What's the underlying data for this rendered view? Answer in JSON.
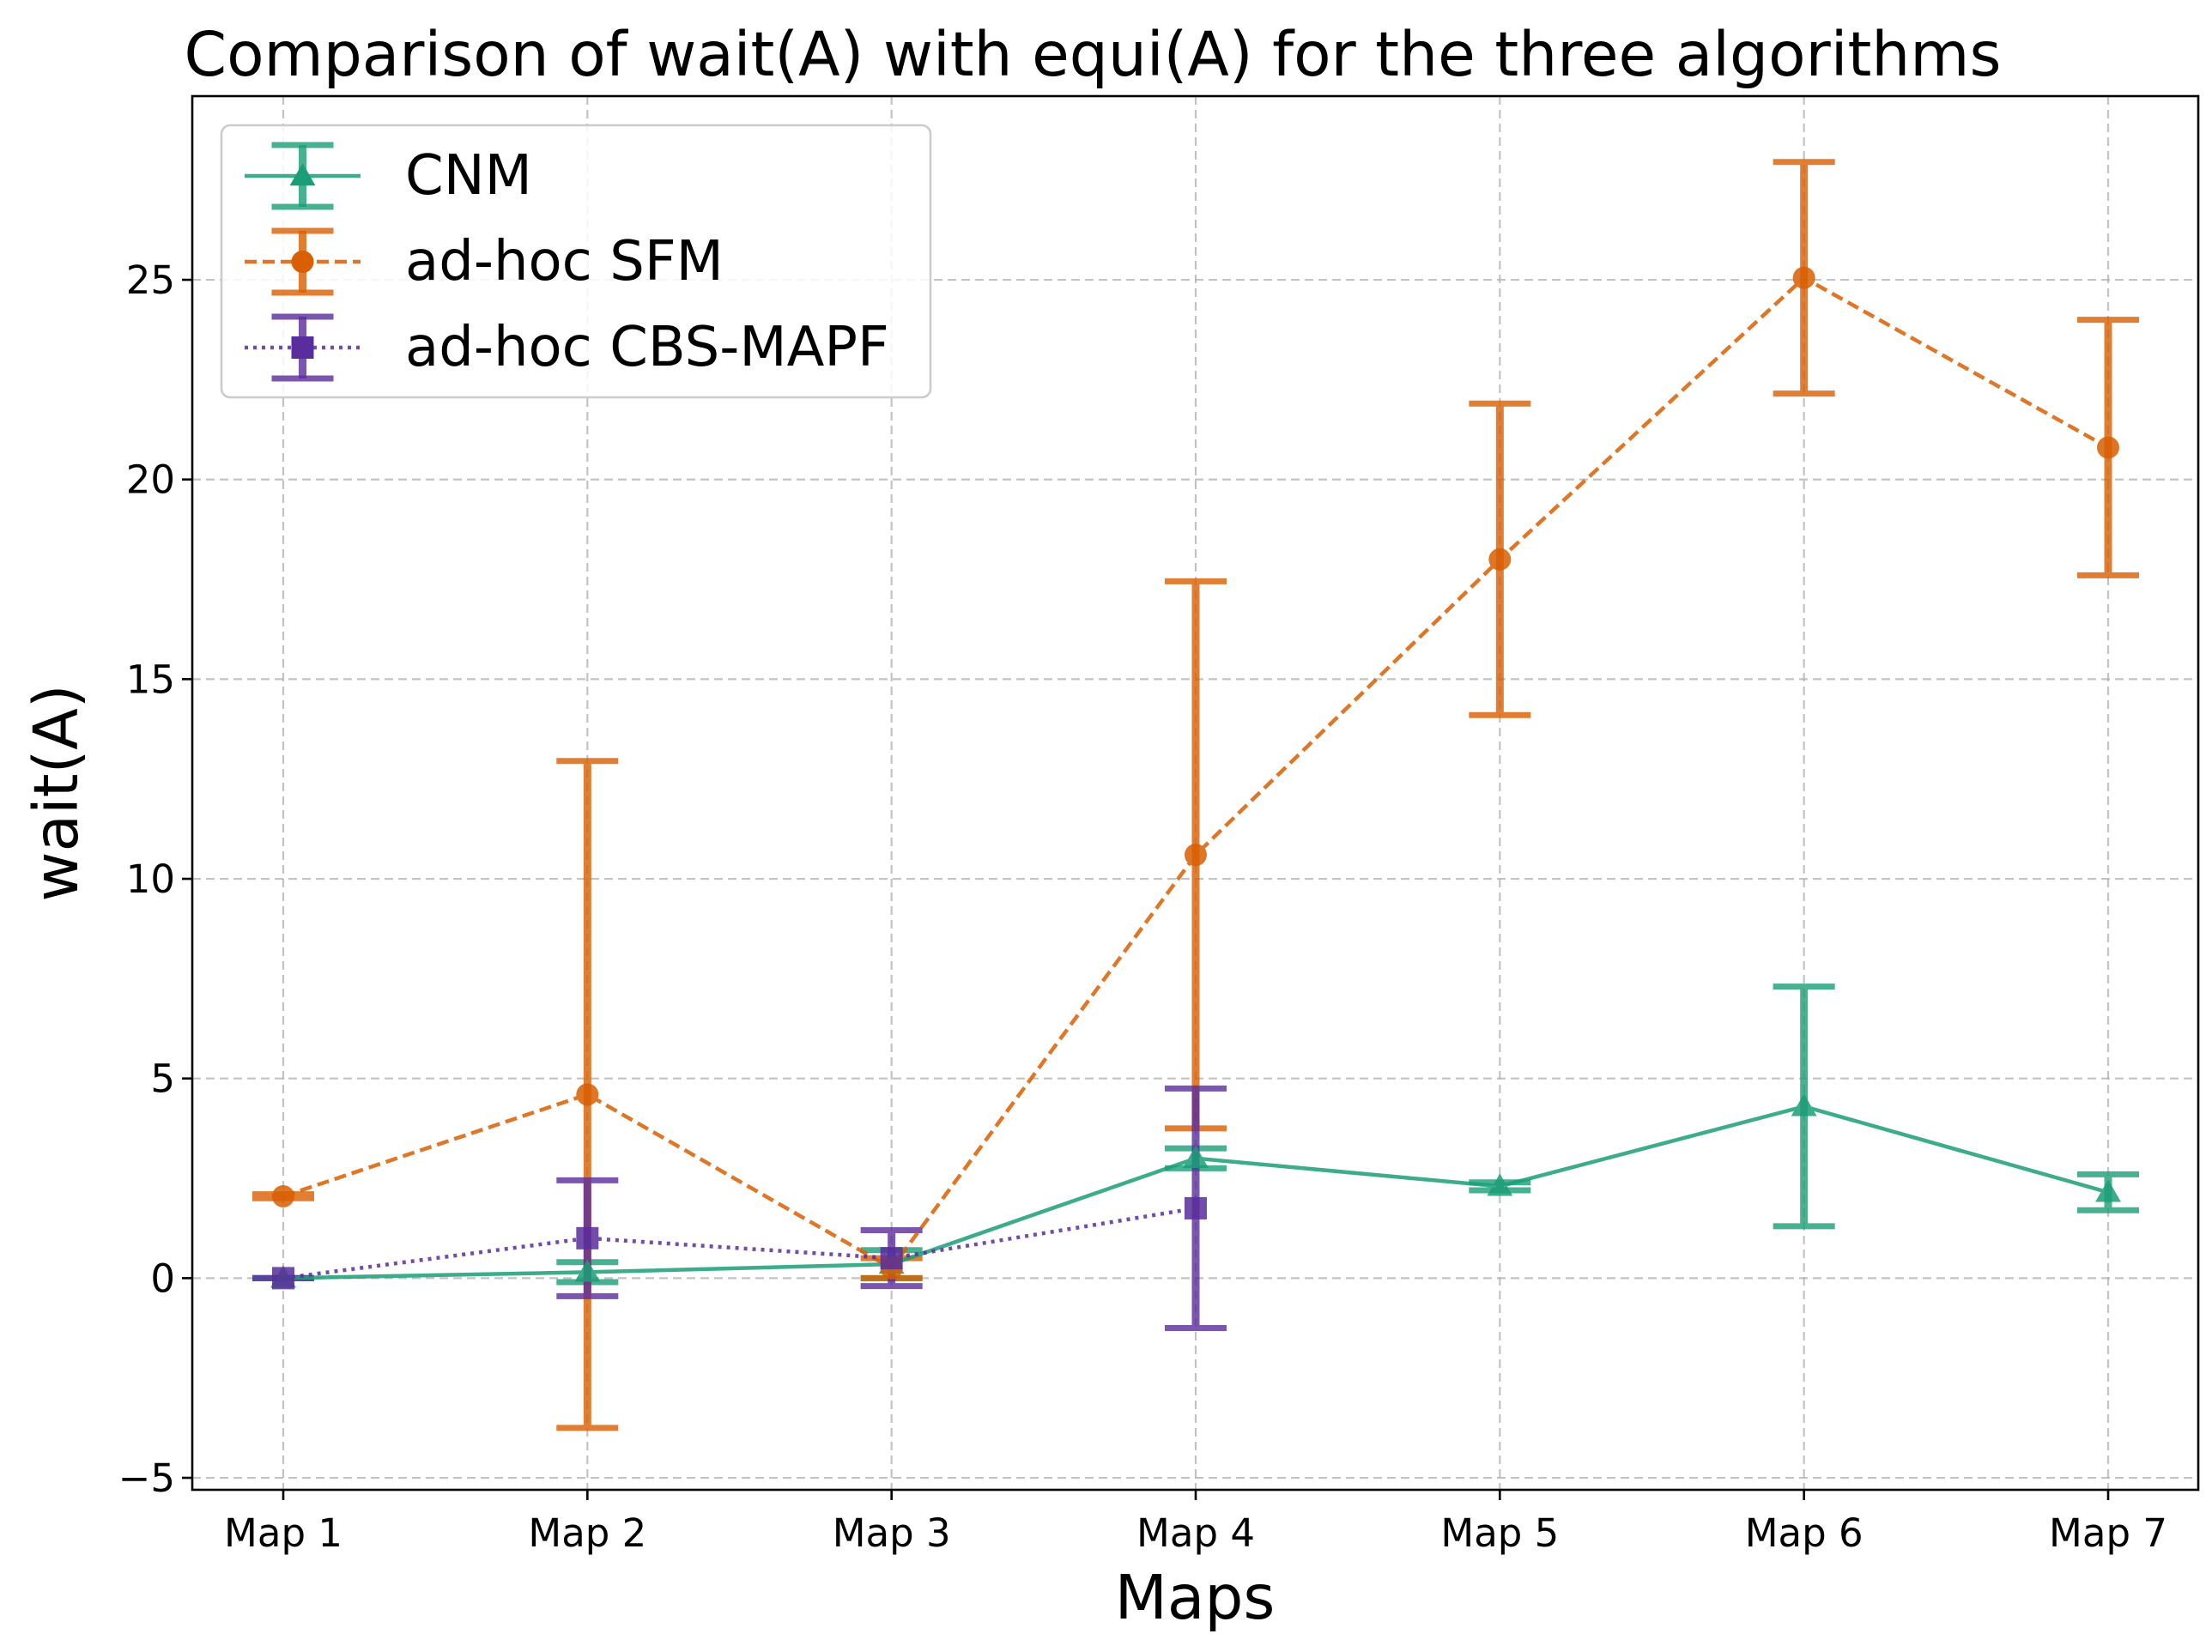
{
  "chart_data": {
    "type": "line",
    "title": "Comparison of wait(A) with equi(A) for the three algorithms",
    "xlabel": "Maps",
    "ylabel": "wait(A)",
    "categories": [
      "Map 1",
      "Map 2",
      "Map 3",
      "Map 4",
      "Map 5",
      "Map 6",
      "Map 7"
    ],
    "ylim": [
      -5.3,
      29.6
    ],
    "yticks": [
      -5,
      0,
      5,
      10,
      15,
      20,
      25
    ],
    "ytick_labels": [
      "−5",
      "0",
      "5",
      "10",
      "15",
      "20",
      "25"
    ],
    "grid": true,
    "legend_position": "upper-left",
    "series": [
      {
        "name": "CNM",
        "color": "#1b9e77",
        "linestyle": "solid",
        "marker": "triangle",
        "values": [
          0.0,
          0.15,
          0.35,
          3.0,
          2.3,
          4.3,
          2.15
        ],
        "errors": [
          0.0,
          0.25,
          0.35,
          0.25,
          0.1,
          3.0,
          0.45
        ]
      },
      {
        "name": "ad-hoc SFM",
        "color": "#d95f02",
        "linestyle": "dashed",
        "marker": "circle",
        "values": [
          2.05,
          4.6,
          0.25,
          10.6,
          18.0,
          25.05,
          20.8
        ],
        "errors": [
          0.05,
          8.35,
          0.25,
          6.85,
          3.9,
          2.9,
          3.2
        ]
      },
      {
        "name": "ad-hoc CBS-MAPF",
        "color": "#5a2d9c",
        "linestyle": "dotted",
        "marker": "square",
        "values": [
          0.0,
          1.0,
          0.5,
          1.75,
          null,
          null,
          null
        ],
        "errors": [
          0.0,
          1.45,
          0.7,
          3.0,
          null,
          null,
          null
        ]
      }
    ]
  }
}
